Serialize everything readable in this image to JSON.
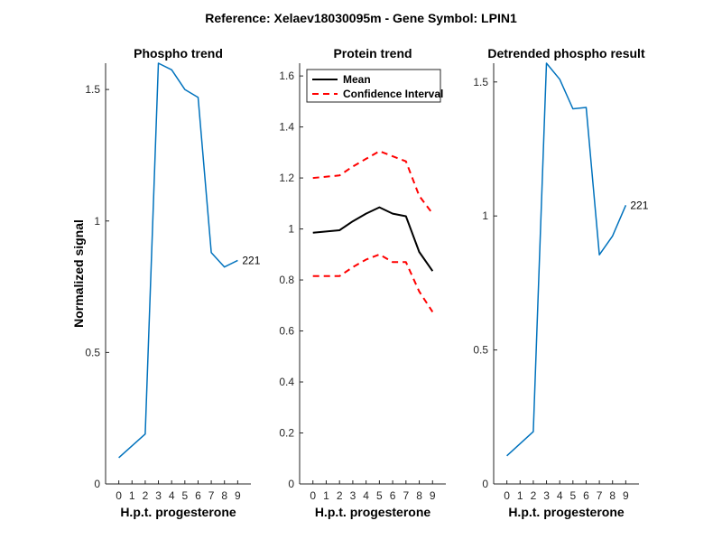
{
  "figure": {
    "suptitle": "Reference:  Xelaev18030095m - Gene Symbol:  LPIN1"
  },
  "chart_data": [
    {
      "type": "line",
      "title": "Phospho trend",
      "xlabel": "H.p.t. progesterone",
      "ylabel": "Normalized signal",
      "x": [
        0,
        2,
        3,
        4,
        5,
        6,
        7,
        8,
        9
      ],
      "xticks": [
        0,
        1,
        2,
        3,
        4,
        5,
        6,
        7,
        8,
        9
      ],
      "xlim": [
        -1,
        10
      ],
      "ylim": [
        0,
        1.6
      ],
      "yticks": [
        0,
        0.5,
        1,
        1.5
      ],
      "ytick_labels": [
        "0",
        "0.5",
        "1",
        "1.5"
      ],
      "series": [
        {
          "values": [
            0.1,
            0.19,
            1.6,
            1.575,
            1.5,
            1.47,
            0.88,
            0.825,
            0.85
          ],
          "color": "#0072BD",
          "style": "solid"
        }
      ],
      "annotation": {
        "text": "221",
        "x": 9,
        "y": 0.85
      }
    },
    {
      "type": "line",
      "title": "Protein trend",
      "xlabel": "H.p.t. progesterone",
      "ylabel": "",
      "x": [
        0,
        2,
        3,
        4,
        5,
        6,
        7,
        8,
        9
      ],
      "xticks": [
        0,
        1,
        2,
        3,
        4,
        5,
        6,
        7,
        8,
        9
      ],
      "xlim": [
        -1,
        10
      ],
      "ylim": [
        0,
        1.65
      ],
      "yticks": [
        0,
        0.2,
        0.4,
        0.6,
        0.8,
        1,
        1.2,
        1.4,
        1.6
      ],
      "ytick_labels": [
        "0",
        "0.2",
        "0.4",
        "0.6",
        "0.8",
        "1",
        "1.2",
        "1.4",
        "1.6"
      ],
      "legend": {
        "placement": "top-left",
        "entries": [
          "Mean",
          "Confidence Interval"
        ]
      },
      "series": [
        {
          "name": "Mean",
          "values": [
            0.985,
            0.995,
            1.03,
            1.06,
            1.085,
            1.06,
            1.05,
            0.91,
            0.835
          ],
          "color": "#000000",
          "style": "solid"
        },
        {
          "name": "Confidence Interval",
          "values": [
            1.2,
            1.21,
            1.245,
            1.275,
            1.305,
            1.285,
            1.265,
            1.13,
            1.06
          ],
          "color": "#FF0000",
          "style": "dashed"
        },
        {
          "name": "Confidence Interval",
          "values": [
            0.815,
            0.815,
            0.85,
            0.88,
            0.9,
            0.87,
            0.87,
            0.755,
            0.675
          ],
          "color": "#FF0000",
          "style": "dashed"
        }
      ]
    },
    {
      "type": "line",
      "title": "Detrended phospho result",
      "xlabel": "H.p.t. progesterone",
      "ylabel": "",
      "x": [
        0,
        2,
        3,
        4,
        5,
        6,
        7,
        8,
        9
      ],
      "xticks": [
        0,
        1,
        2,
        3,
        4,
        5,
        6,
        7,
        8,
        9
      ],
      "xlim": [
        -1,
        10
      ],
      "ylim": [
        0,
        1.57
      ],
      "yticks": [
        0,
        0.5,
        1,
        1.5
      ],
      "ytick_labels": [
        "0",
        "0.5",
        "1",
        "1.5"
      ],
      "series": [
        {
          "values": [
            0.105,
            0.195,
            1.57,
            1.51,
            1.4,
            1.405,
            0.855,
            0.925,
            1.04
          ],
          "color": "#0072BD",
          "style": "solid"
        }
      ],
      "annotation": {
        "text": "221",
        "x": 9,
        "y": 1.04
      }
    }
  ]
}
